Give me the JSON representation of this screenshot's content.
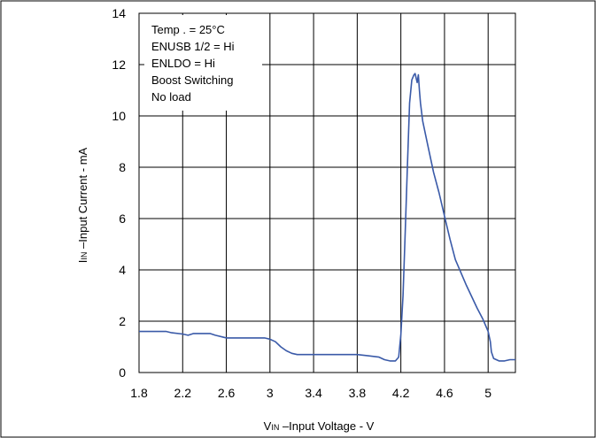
{
  "chart_data": {
    "type": "line",
    "title": "",
    "xlabel": {
      "main": "V",
      "sub": "IN",
      "rest": " –Input Voltage - V"
    },
    "ylabel": {
      "main": "I",
      "sub": "IN",
      "rest": " –Input Current - mA"
    },
    "xlim": [
      1.8,
      5.25
    ],
    "ylim": [
      0,
      14
    ],
    "xticks": [
      1.8,
      2.2,
      2.6,
      3.0,
      3.4,
      3.8,
      4.2,
      4.6,
      5.0
    ],
    "xtick_labels": [
      "1.8",
      "2.2",
      "2.6",
      "3",
      "3.4",
      "3.8",
      "4.2",
      "4.6",
      "5"
    ],
    "yticks": [
      0,
      2,
      4,
      6,
      8,
      10,
      12,
      14
    ],
    "ytick_labels": [
      "0",
      "2",
      "4",
      "6",
      "8",
      "10",
      "12",
      "14"
    ],
    "grid": true,
    "series_color": "#3a5aa8",
    "annotation": [
      "Temp . = 25°C",
      "ENUSB 1/2 = Hi",
      "ENLDO  = Hi",
      "Boost Switching",
      "No load"
    ],
    "series": [
      {
        "x": [
          1.8,
          2.05,
          2.1,
          2.2,
          2.25,
          2.3,
          2.45,
          2.5,
          2.6,
          2.95,
          3.0,
          3.05,
          3.1,
          3.15,
          3.2,
          3.25,
          3.7,
          3.8,
          3.9,
          4.0,
          4.05,
          4.1,
          4.15,
          4.18,
          4.2,
          4.22,
          4.24,
          4.26,
          4.28,
          4.3,
          4.32,
          4.33,
          4.35,
          4.36,
          4.37,
          4.38,
          4.4,
          4.45,
          4.5,
          4.55,
          4.6,
          4.65,
          4.7,
          4.8,
          4.9,
          4.95,
          5.0,
          5.02,
          5.03,
          5.05,
          5.1,
          5.15,
          5.2,
          5.25
        ],
        "y": [
          1.6,
          1.6,
          1.55,
          1.5,
          1.45,
          1.52,
          1.52,
          1.45,
          1.35,
          1.35,
          1.3,
          1.2,
          1.0,
          0.85,
          0.75,
          0.7,
          0.7,
          0.7,
          0.65,
          0.6,
          0.5,
          0.45,
          0.45,
          0.6,
          1.5,
          3.0,
          5.5,
          8.0,
          10.5,
          11.4,
          11.6,
          11.65,
          11.3,
          11.6,
          11.0,
          10.5,
          9.8,
          8.8,
          7.8,
          7.0,
          6.1,
          5.2,
          4.4,
          3.4,
          2.5,
          2.1,
          1.6,
          1.2,
          0.8,
          0.55,
          0.45,
          0.45,
          0.5,
          0.5
        ]
      }
    ]
  }
}
